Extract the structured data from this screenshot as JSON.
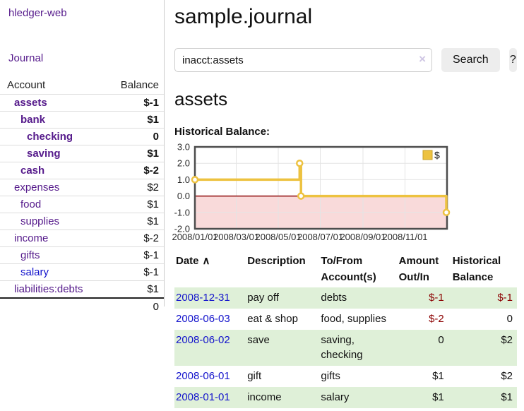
{
  "app": {
    "title": "hledger-web"
  },
  "icons": {
    "clear": "×",
    "sort_asc": "∧",
    "legend_swatch": "gold-square"
  },
  "colors": {
    "link_purple": "#551a8b",
    "link_blue": "#1414cc",
    "negative_strong": "#8b0000",
    "negative_muted": "#c2807e",
    "row_highlight_green": "#dff0d8",
    "series_gold": "#edc240"
  },
  "sidebar": {
    "nav_journal": "Journal",
    "accounts_table": {
      "headers": [
        "Account",
        "Balance"
      ],
      "rows": [
        {
          "name": "assets",
          "balance": "$-1",
          "indent": 1,
          "current": true,
          "balance_style": "neg-strong"
        },
        {
          "name": "bank",
          "balance": "$1",
          "indent": 2,
          "current": true,
          "balance_style": ""
        },
        {
          "name": "checking",
          "balance": "0",
          "indent": 3,
          "current": true,
          "balance_style": ""
        },
        {
          "name": "saving",
          "balance": "$1",
          "indent": 3,
          "current": true,
          "balance_style": ""
        },
        {
          "name": "cash",
          "balance": "$-2",
          "indent": 2,
          "current": true,
          "balance_style": "neg-strong"
        },
        {
          "name": "expenses",
          "balance": "$2",
          "indent": 1,
          "current": false,
          "balance_style": ""
        },
        {
          "name": "food",
          "balance": "$1",
          "indent": 2,
          "current": false,
          "balance_style": ""
        },
        {
          "name": "supplies",
          "balance": "$1",
          "indent": 2,
          "current": false,
          "balance_style": ""
        },
        {
          "name": "income",
          "balance": "$-2",
          "indent": 1,
          "current": false,
          "balance_style": "neg-muted"
        },
        {
          "name": "gifts",
          "balance": "$-1",
          "indent": 2,
          "current": false,
          "balance_style": "neg-muted"
        },
        {
          "name": "salary",
          "balance": "$-1",
          "indent": 2,
          "current": false,
          "balance_style": "neg-muted",
          "link_color": "blue"
        },
        {
          "name": "liabilities:debts",
          "balance": "$1",
          "indent": 1,
          "current": false,
          "balance_style": ""
        }
      ],
      "total": "0"
    }
  },
  "header": {
    "title": "sample.journal"
  },
  "search": {
    "value": "inacct:assets",
    "button_label": "Search",
    "help_label": "?"
  },
  "account_page": {
    "title": "assets",
    "chart_label": "Historical Balance:"
  },
  "chart_data": {
    "type": "line",
    "step": true,
    "title": "Historical Balance:",
    "series": [
      {
        "name": "$",
        "color": "#edc240",
        "points": [
          [
            "2008-01-01",
            1
          ],
          [
            "2008-06-01",
            2
          ],
          [
            "2008-06-03",
            0
          ],
          [
            "2008-12-31",
            -1
          ]
        ]
      }
    ],
    "xrange": [
      "2008-01-01",
      "2009-01-01"
    ],
    "ylim": [
      -2,
      3
    ],
    "yticks": [
      3.0,
      2.0,
      1.0,
      0.0,
      -1.0,
      -2.0
    ],
    "xticks": [
      {
        "date": "2008-01-01",
        "label": "2008/01/01"
      },
      {
        "date": "2008-03-01",
        "label": "2008/03/01"
      },
      {
        "date": "2008-05-01",
        "label": "2008/05/01"
      },
      {
        "date": "2008-07-01",
        "label": "2008/07/01"
      },
      {
        "date": "2008-09-01",
        "label": "2008/09/01"
      },
      {
        "date": "2008-11-01",
        "label": "2008/11/01"
      }
    ],
    "grid": true,
    "negative_region_color": "#f9dada",
    "zero_line_color": "#8f0b0b",
    "legend": {
      "label": "$",
      "position": "top-right"
    }
  },
  "transactions": {
    "headers": [
      "Date",
      "Description",
      "To/From Account(s)",
      "Amount Out/In",
      "Historical Balance"
    ],
    "rows": [
      {
        "date": "2008-12-31",
        "description": "pay off",
        "account": "debts",
        "amount": "$-1",
        "balance": "$-1",
        "amount_negative": true,
        "balance_negative": true,
        "highlighted": true
      },
      {
        "date": "2008-06-03",
        "description": "eat & shop",
        "account": "food, supplies",
        "amount": "$-2",
        "balance": "0",
        "amount_negative": true,
        "balance_negative": false,
        "highlighted": false
      },
      {
        "date": "2008-06-02",
        "description": "save",
        "account": "saving, checking",
        "amount": "0",
        "balance": "$2",
        "amount_negative": false,
        "balance_negative": false,
        "highlighted": true
      },
      {
        "date": "2008-06-01",
        "description": "gift",
        "account": "gifts",
        "amount": "$1",
        "balance": "$2",
        "amount_negative": false,
        "balance_negative": false,
        "highlighted": false
      },
      {
        "date": "2008-01-01",
        "description": "income",
        "account": "salary",
        "amount": "$1",
        "balance": "$1",
        "amount_negative": false,
        "balance_negative": false,
        "highlighted": true
      }
    ]
  }
}
